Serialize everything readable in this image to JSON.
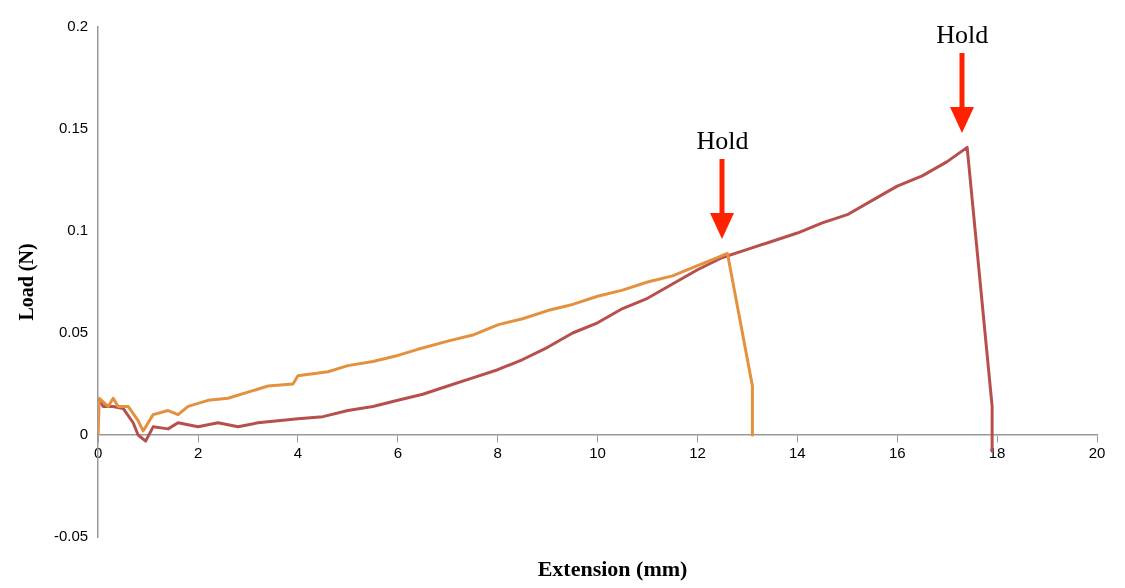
{
  "chart_data": {
    "type": "line",
    "xlabel": "Extension (mm)",
    "ylabel": "Load (N)",
    "xlim": [
      0,
      20
    ],
    "xticks": [
      0,
      2,
      4,
      6,
      8,
      10,
      12,
      14,
      16,
      18,
      20
    ],
    "ylim": [
      -0.05,
      0.2
    ],
    "yticks": [
      -0.05,
      0,
      0.05,
      0.1,
      0.15,
      0.2
    ],
    "grid": false,
    "legend": false,
    "marker": "none",
    "line_style": "solid",
    "series": [
      {
        "color": "#e3913f",
        "x": [
          0,
          0.02,
          0.2,
          0.3,
          0.4,
          0.6,
          0.8,
          0.9,
          1.1,
          1.4,
          1.6,
          1.8,
          2.2,
          2.6,
          3,
          3.4,
          3.9,
          4,
          4.6,
          5,
          5.5,
          6,
          6.4,
          7,
          7.5,
          8,
          8.5,
          9,
          9.5,
          10,
          10.5,
          11,
          11.5,
          12,
          12.4,
          12.6,
          13.1,
          13.1
        ],
        "values": [
          0,
          0.018,
          0.014,
          0.018,
          0.014,
          0.014,
          0.007,
          0.002,
          0.01,
          0.012,
          0.01,
          0.014,
          0.017,
          0.018,
          0.021,
          0.024,
          0.025,
          0.029,
          0.031,
          0.034,
          0.036,
          0.039,
          0.042,
          0.046,
          0.049,
          0.054,
          0.057,
          0.061,
          0.064,
          0.068,
          0.071,
          0.075,
          0.078,
          0.083,
          0.087,
          0.089,
          0.024,
          0
        ]
      },
      {
        "color": "#b7504c",
        "x": [
          0,
          0.1,
          0.3,
          0.5,
          0.7,
          0.8,
          0.95,
          1.1,
          1.4,
          1.6,
          2,
          2.4,
          2.8,
          3.2,
          3.6,
          4,
          4.5,
          5,
          5.5,
          6,
          6.5,
          7,
          7.5,
          8,
          8.5,
          9,
          9.5,
          10,
          10.5,
          11,
          11.5,
          12,
          12.5,
          13,
          13.5,
          14,
          14.5,
          15,
          15.5,
          16,
          16.5,
          17,
          17.4,
          17.9,
          17.9
        ],
        "values": [
          0.018,
          0.014,
          0.014,
          0.013,
          0.006,
          0,
          -0.003,
          0.004,
          0.003,
          0.006,
          0.004,
          0.006,
          0.004,
          0.006,
          0.007,
          0.008,
          0.009,
          0.012,
          0.014,
          0.017,
          0.02,
          0.024,
          0.028,
          0.032,
          0.037,
          0.043,
          0.05,
          0.055,
          0.062,
          0.067,
          0.074,
          0.081,
          0.087,
          0.091,
          0.095,
          0.099,
          0.104,
          0.108,
          0.115,
          0.122,
          0.127,
          0.134,
          0.141,
          0.014,
          -0.008
        ]
      }
    ],
    "annotations": [
      "Hold",
      "Hold"
    ]
  }
}
